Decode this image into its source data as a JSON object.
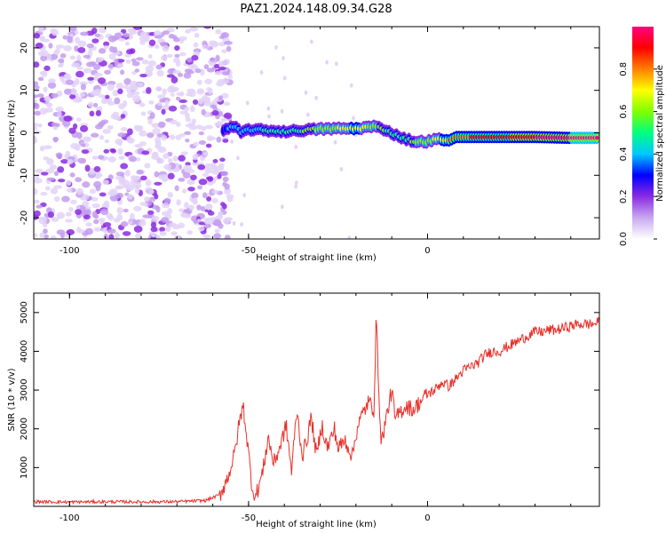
{
  "title": "PAZ1.2024.148.09.34.G28",
  "chart_data": [
    {
      "type": "heatmap",
      "title": "PAZ1.2024.148.09.34.G28",
      "xlabel": "Height of straight line (km)",
      "ylabel": "Frequency (Hz)",
      "xlim": [
        -110,
        48
      ],
      "ylim": [
        -25,
        25
      ],
      "x_ticks": [
        -100,
        -50,
        0
      ],
      "y_ticks": [
        20,
        10,
        0,
        -10,
        -20
      ],
      "noise_region_x": [
        -110,
        -57
      ],
      "signal_ridge": {
        "x": [
          -57,
          -54,
          -52,
          -50,
          -46,
          -40,
          -35,
          -30,
          -25,
          -20,
          -15,
          -12,
          -9,
          -6,
          -3,
          0,
          3,
          6,
          8,
          12,
          20,
          30,
          40,
          48
        ],
        "freq": [
          0.5,
          1.5,
          0.0,
          0.8,
          0.6,
          0.3,
          0.6,
          0.9,
          1.0,
          1.0,
          1.5,
          0.8,
          -0.5,
          -1.5,
          -2.2,
          -2.0,
          -1.5,
          -1.8,
          -1.0,
          -1.0,
          -1.0,
          -1.0,
          -1.2,
          -1.2
        ],
        "amplitude": [
          0.3,
          0.45,
          0.4,
          0.4,
          0.45,
          0.5,
          0.55,
          0.6,
          0.65,
          0.75,
          0.6,
          0.55,
          0.5,
          0.5,
          0.6,
          0.6,
          0.7,
          0.75,
          0.8,
          0.85,
          0.9,
          0.95,
          1.0,
          1.0
        ]
      },
      "colorbar": {
        "label": "Normalized spectral amplitude",
        "range": [
          0,
          1
        ],
        "ticks": [
          "0.0",
          "0.2",
          "0.4",
          "0.6",
          "0.8"
        ],
        "colors": [
          "#ffffff",
          "#c8a8f0",
          "#8a2be2",
          "#0000ff",
          "#00c8ff",
          "#00ff80",
          "#80ff00",
          "#ffff00",
          "#ff8000",
          "#ff0000",
          "#ff0080"
        ]
      }
    },
    {
      "type": "line",
      "xlabel": "Height of straight line (km)",
      "ylabel": "SNR (10 * v/v)",
      "xlim": [
        -110,
        48
      ],
      "ylim": [
        0,
        5500
      ],
      "x_ticks": [
        -100,
        -50,
        0
      ],
      "y_ticks": [
        1000,
        2000,
        3000,
        4000,
        5000
      ],
      "line_color": "#e8302a",
      "series": [
        {
          "x": [
            -110,
            -100,
            -90,
            -80,
            -70,
            -62,
            -58,
            -56,
            -54,
            -52.5,
            -51.5,
            -50.5,
            -49,
            -48,
            -46,
            -44.5,
            -43,
            -41,
            -39.5,
            -38,
            -36.5,
            -35,
            -33.5,
            -32.5,
            -31,
            -29.5,
            -28,
            -26,
            -25,
            -23,
            -21,
            -19.5,
            -18,
            -16.5,
            -15,
            -14.3,
            -13.8,
            -13,
            -11.5,
            -10,
            -9,
            -8,
            -6,
            -4,
            -2,
            0,
            2,
            4,
            6,
            8,
            10,
            12,
            14,
            16,
            18,
            20,
            22,
            24,
            26,
            28,
            30,
            32,
            34,
            36,
            38,
            40,
            42,
            44,
            46,
            48
          ],
          "y": [
            120,
            110,
            120,
            115,
            120,
            150,
            300,
            700,
            1300,
            2200,
            2600,
            1800,
            500,
            250,
            900,
            1800,
            1100,
            1600,
            2100,
            900,
            2500,
            1300,
            1800,
            2300,
            1300,
            2100,
            1500,
            2000,
            1500,
            1700,
            1300,
            2100,
            2400,
            2700,
            2500,
            4950,
            3500,
            1600,
            2300,
            3000,
            2200,
            2400,
            2600,
            2500,
            2700,
            2900,
            3000,
            3200,
            3100,
            3300,
            3500,
            3600,
            3700,
            3900,
            4000,
            4000,
            4100,
            4200,
            4300,
            4400,
            4500,
            4500,
            4550,
            4550,
            4600,
            4650,
            4700,
            4700,
            4700,
            4750
          ]
        }
      ]
    }
  ]
}
